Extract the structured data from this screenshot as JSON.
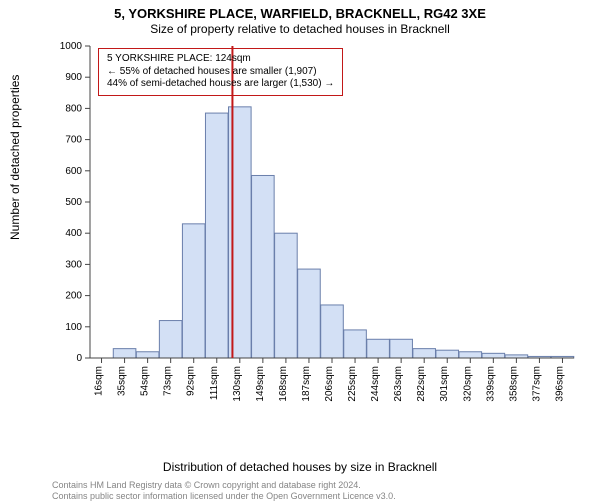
{
  "title_line1": "5, YORKSHIRE PLACE, WARFIELD, BRACKNELL, RG42 3XE",
  "title_line2": "Size of property relative to detached houses in Bracknell",
  "y_axis_label": "Number of detached properties",
  "x_axis_label": "Distribution of detached houses by size in Bracknell",
  "footer_line1": "Contains HM Land Registry data © Crown copyright and database right 2024.",
  "footer_line2": "Contains public sector information licensed under the Open Government Licence v3.0.",
  "annotation": {
    "lines": [
      "5 YORKSHIRE PLACE: 124sqm",
      "← 55% of detached houses are smaller (1,907)",
      "44% of semi-detached houses are larger (1,530) →"
    ],
    "border_color": "#c21818",
    "font_size": 10
  },
  "chart": {
    "type": "histogram",
    "x_categories": [
      "16sqm",
      "35sqm",
      "54sqm",
      "73sqm",
      "92sqm",
      "111sqm",
      "130sqm",
      "149sqm",
      "168sqm",
      "187sqm",
      "206sqm",
      "225sqm",
      "244sqm",
      "263sqm",
      "282sqm",
      "301sqm",
      "320sqm",
      "339sqm",
      "358sqm",
      "377sqm",
      "396sqm"
    ],
    "values": [
      0,
      30,
      20,
      120,
      430,
      785,
      805,
      585,
      400,
      285,
      170,
      90,
      60,
      60,
      30,
      25,
      20,
      15,
      10,
      5,
      5
    ],
    "bar_fill": "#d3e0f5",
    "bar_stroke": "#6a7fab",
    "bar_stroke_width": 1,
    "marker_line_x_index": 5.68,
    "marker_line_color": "#c21818",
    "marker_line_width": 2,
    "y_axis": {
      "min": 0,
      "max": 1000,
      "tick_step": 100,
      "tick_labels": [
        "0",
        "100",
        "200",
        "300",
        "400",
        "500",
        "600",
        "700",
        "800",
        "900",
        "1000"
      ]
    },
    "axis_color": "#444444",
    "tick_font_size": 10,
    "background": "#ffffff"
  }
}
